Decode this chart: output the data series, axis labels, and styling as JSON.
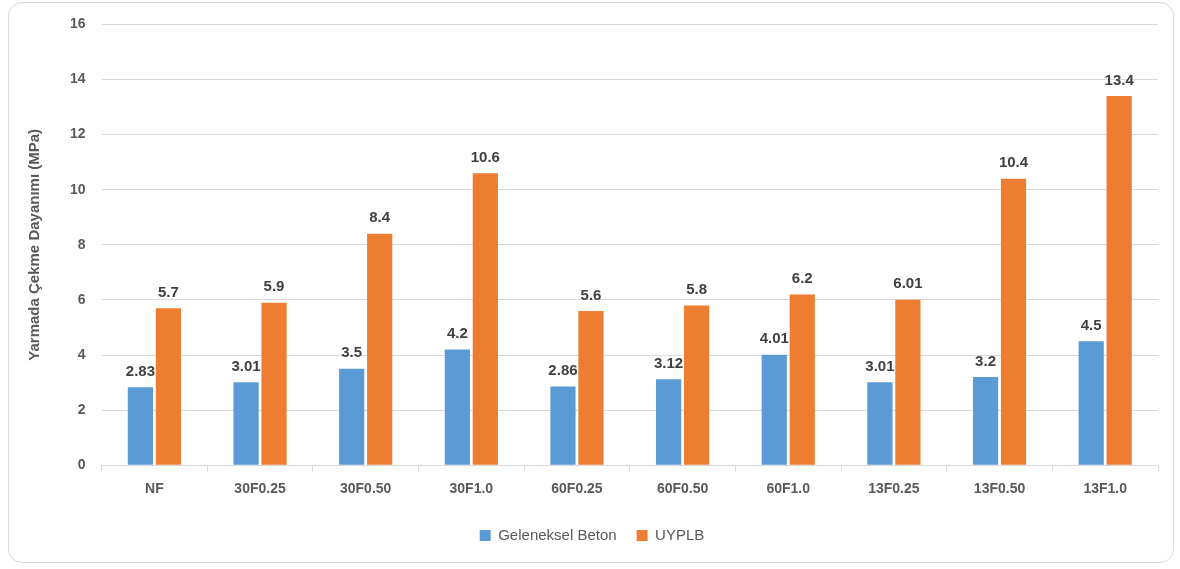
{
  "chart_data": {
    "type": "bar",
    "ylabel": "Yarmada Çekme Dayanımı (MPa)",
    "categories": [
      "NF",
      "30F0.25",
      "30F0.50",
      "30F1.0",
      "60F0.25",
      "60F0.50",
      "60F1.0",
      "13F0.25",
      "13F0.50",
      "13F1.0"
    ],
    "series": [
      {
        "name": "Geleneksel Beton",
        "color": "#5b9bd5",
        "values": [
          2.83,
          3.01,
          3.5,
          4.2,
          2.86,
          3.12,
          4.01,
          3.01,
          3.2,
          4.5
        ]
      },
      {
        "name": "UYPLB",
        "color": "#ed7d31",
        "values": [
          5.7,
          5.9,
          8.4,
          10.6,
          5.6,
          5.8,
          6.2,
          6.01,
          10.4,
          13.4
        ]
      }
    ],
    "ylim": [
      0,
      16
    ],
    "yticks": [
      0,
      2,
      4,
      6,
      8,
      10,
      12,
      14,
      16
    ],
    "grid": "y",
    "legend": "bottom",
    "data_labels": true
  }
}
